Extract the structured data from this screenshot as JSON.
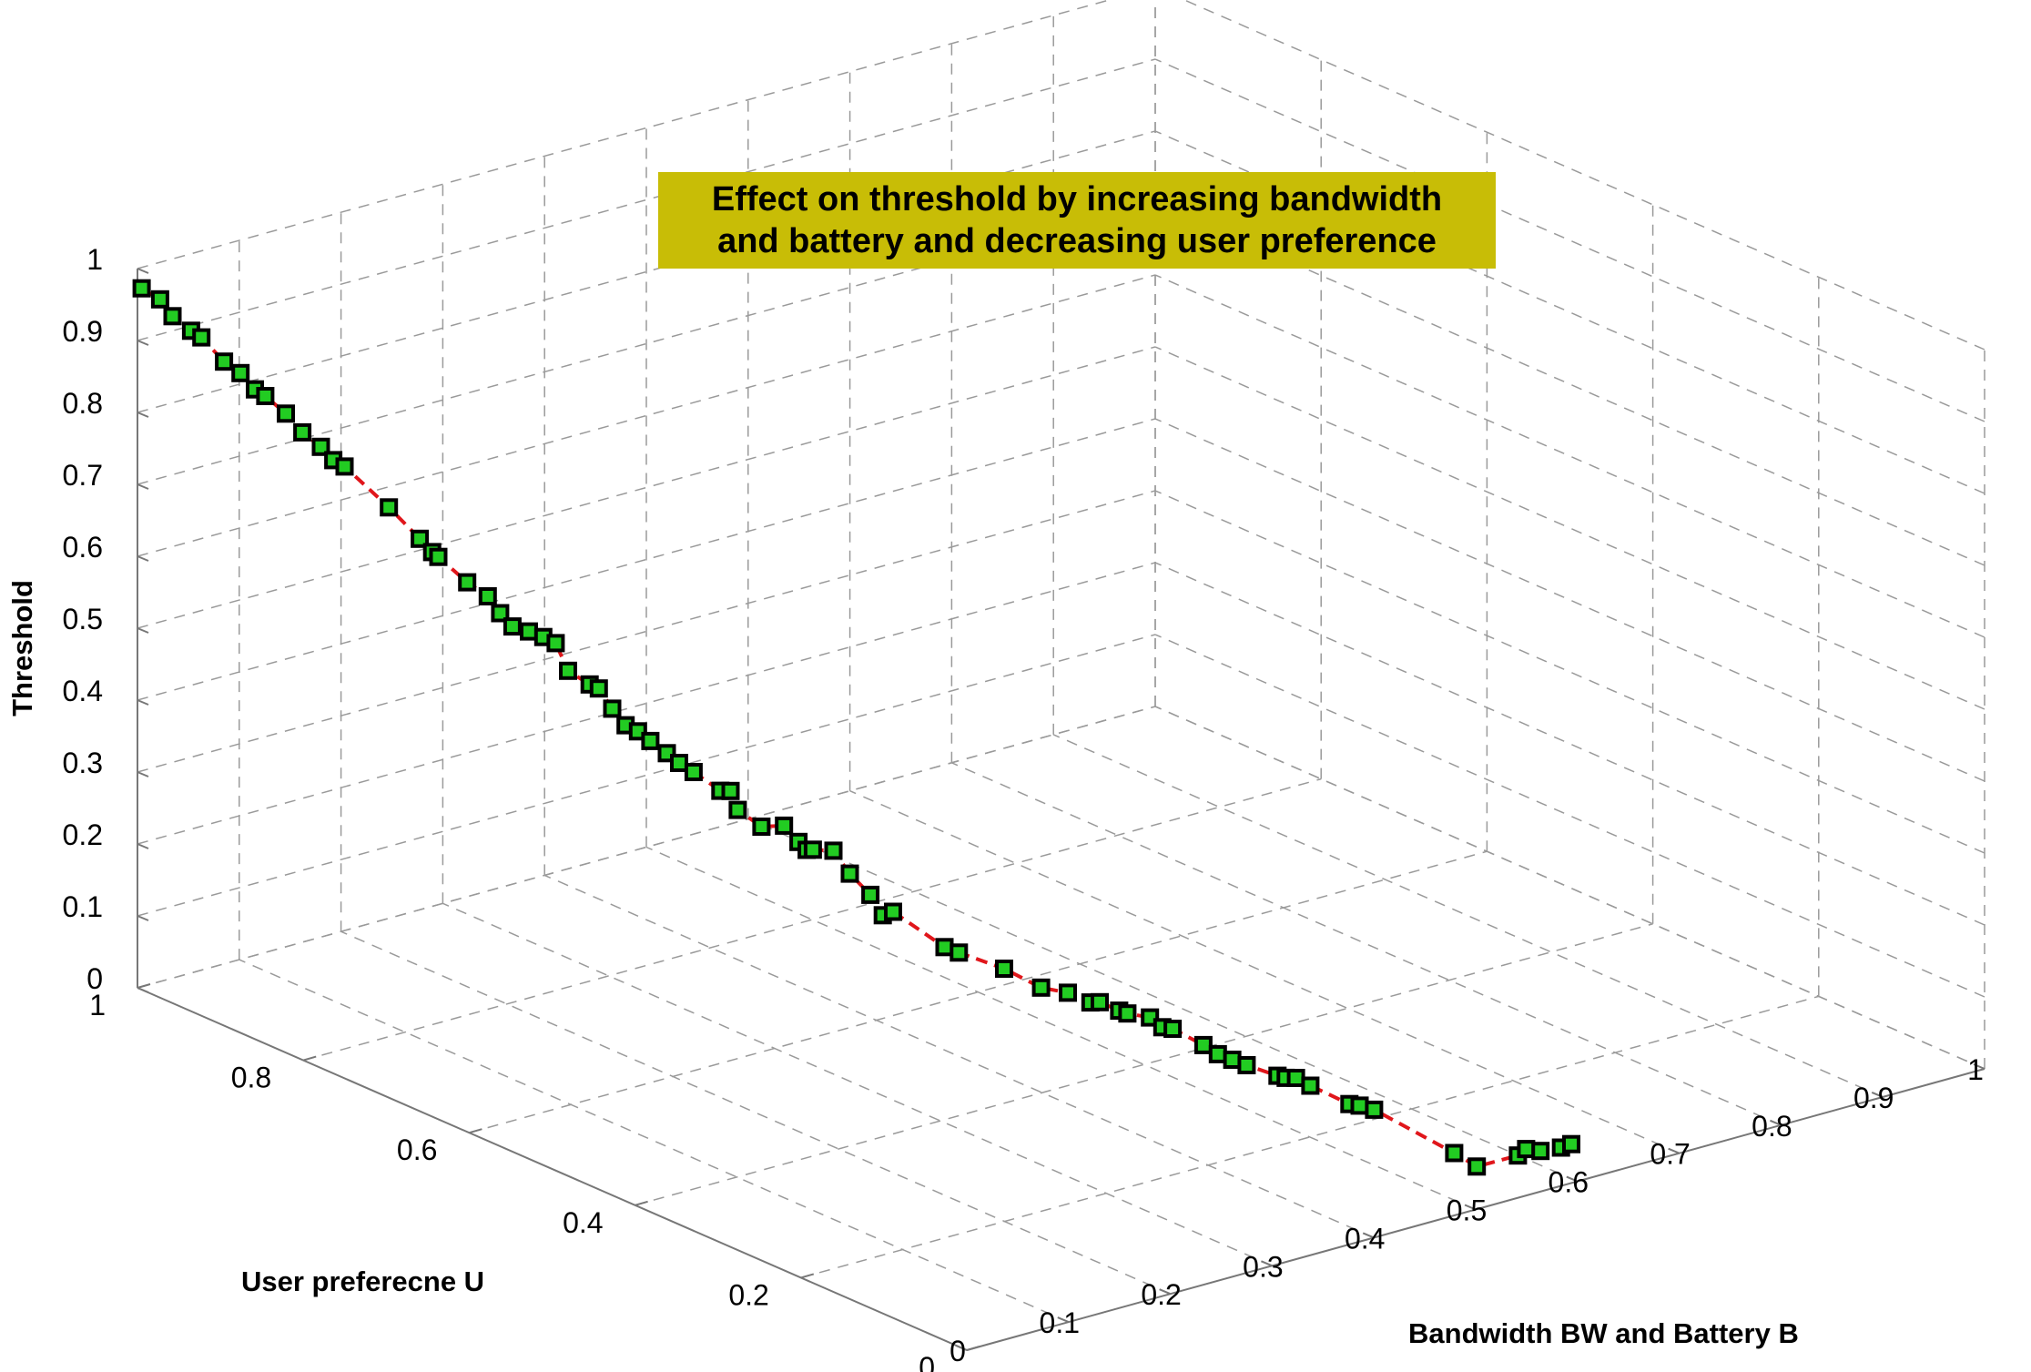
{
  "chart_data": {
    "type": "line3d",
    "title_lines": [
      "Effect on threshold by increasing bandwidth",
      "and battery and decreasing user preference"
    ],
    "xlabel": "Bandwidth BW and Battery B",
    "ylabel": "User preferecne U",
    "zlabel": "Threshold",
    "xlim": [
      0,
      1
    ],
    "ylim": [
      0,
      1
    ],
    "zlim": [
      0,
      1
    ],
    "x_ticks": [
      "0",
      "0.1",
      "0.2",
      "0.3",
      "0.4",
      "0.5",
      "0.6",
      "0.7",
      "0.8",
      "0.9",
      "1"
    ],
    "y_ticks": [
      "0",
      "0.2",
      "0.4",
      "0.6",
      "0.8",
      "1"
    ],
    "z_ticks": [
      "0",
      "0.1",
      "0.2",
      "0.3",
      "0.4",
      "0.5",
      "0.6",
      "0.7",
      "0.8",
      "0.9",
      "1"
    ],
    "grid": true,
    "line_color": "#e0161b",
    "line_style": "dashed",
    "marker": "square",
    "marker_edge_color": "#000000",
    "marker_face_color": "#22cc22",
    "title_background": "#c8bd06",
    "series": [
      {
        "x": [
          0.0,
          0.006,
          0.01,
          0.016,
          0.018,
          0.028,
          0.032,
          0.038,
          0.04,
          0.048,
          0.052,
          0.058,
          0.062,
          0.065,
          0.08,
          0.09,
          0.094,
          0.096,
          0.108,
          0.116,
          0.12,
          0.124,
          0.132,
          0.138,
          0.142,
          0.146,
          0.155,
          0.16,
          0.165,
          0.17,
          0.174,
          0.178,
          0.186,
          0.19,
          0.196,
          0.206,
          0.212,
          0.215,
          0.226,
          0.236,
          0.242,
          0.246,
          0.248,
          0.256,
          0.264,
          0.272,
          0.276,
          0.282,
          0.304,
          0.31,
          0.33,
          0.346,
          0.36,
          0.37,
          0.375,
          0.386,
          0.39,
          0.4,
          0.404,
          0.41,
          0.424,
          0.43,
          0.436,
          0.442,
          0.456,
          0.46,
          0.466,
          0.472,
          0.49,
          0.496,
          0.502,
          0.54,
          0.55,
          0.57,
          0.574,
          0.58,
          0.592,
          0.598
        ],
        "y": [
          0.995,
          0.98,
          0.97,
          0.955,
          0.945,
          0.93,
          0.915,
          0.905,
          0.895,
          0.88,
          0.865,
          0.85,
          0.84,
          0.83,
          0.795,
          0.77,
          0.76,
          0.755,
          0.735,
          0.72,
          0.71,
          0.7,
          0.69,
          0.68,
          0.67,
          0.66,
          0.645,
          0.64,
          0.63,
          0.62,
          0.61,
          0.6,
          0.59,
          0.58,
          0.57,
          0.55,
          0.545,
          0.54,
          0.525,
          0.51,
          0.5,
          0.495,
          0.49,
          0.475,
          0.465,
          0.45,
          0.44,
          0.435,
          0.4,
          0.39,
          0.36,
          0.335,
          0.32,
          0.305,
          0.3,
          0.29,
          0.285,
          0.27,
          0.26,
          0.255,
          0.235,
          0.225,
          0.215,
          0.205,
          0.185,
          0.18,
          0.175,
          0.165,
          0.14,
          0.135,
          0.125,
          0.075,
          0.06,
          0.035,
          0.03,
          0.02,
          0.01,
          0.005
        ],
        "z": [
          0.975,
          0.965,
          0.945,
          0.93,
          0.925,
          0.895,
          0.885,
          0.865,
          0.86,
          0.84,
          0.82,
          0.805,
          0.79,
          0.785,
          0.74,
          0.705,
          0.69,
          0.685,
          0.655,
          0.64,
          0.62,
          0.605,
          0.6,
          0.595,
          0.59,
          0.555,
          0.54,
          0.535,
          0.51,
          0.49,
          0.485,
          0.475,
          0.46,
          0.45,
          0.44,
          0.42,
          0.42,
          0.395,
          0.375,
          0.38,
          0.36,
          0.35,
          0.352,
          0.355,
          0.325,
          0.3,
          0.275,
          0.28,
          0.24,
          0.235,
          0.22,
          0.2,
          0.195,
          0.185,
          0.186,
          0.175,
          0.172,
          0.17,
          0.16,
          0.158,
          0.14,
          0.13,
          0.125,
          0.12,
          0.11,
          0.108,
          0.108,
          0.1,
          0.08,
          0.078,
          0.075,
          0.025,
          0.01,
          0.03,
          0.04,
          0.04,
          0.045,
          0.05
        ]
      }
    ]
  }
}
